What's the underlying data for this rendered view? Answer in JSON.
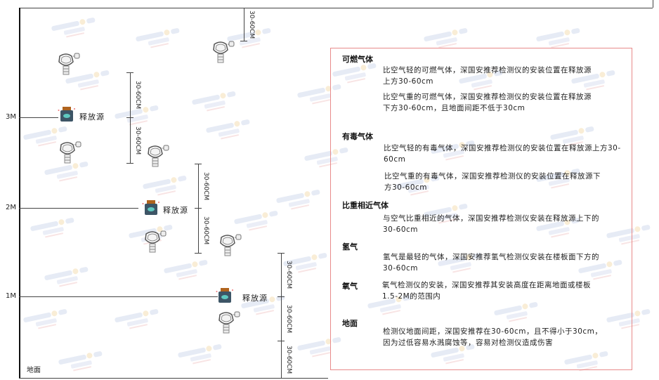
{
  "levels": {
    "l3": "3M",
    "l2": "2M",
    "l1": "1M",
    "ground": "地面"
  },
  "dimension_label": "30-60CM",
  "source_label": "释放源",
  "watermark": "SINGOAN 深国安",
  "notes": {
    "combustible": {
      "title": "可燃气体",
      "p1": "比空气轻的可燃气体，深国安推荐检测仪的安装位置在释放源上方30-60cm",
      "p2": "比空气重的可燃气体，深国安推荐检测仪的安装位置在释放源下方30-60cm，且地面间距不低于30cm"
    },
    "toxic": {
      "title": "有毒气体",
      "p1": "比空气轻的有毒气体，深国安推荐检测仪的安装位置在释放源上方30-60cm",
      "p2": "比空气重的有毒气体，深国安推荐检测仪的安装位置在释放源下方30-60cm"
    },
    "similar": {
      "title": "比重相近气体",
      "p1": "与空气比重相近的气体，深国安推荐检测仪安装在释放源上下的30-60cm"
    },
    "hydrogen": {
      "title": "氢气",
      "p1": "氢气是最轻的气体，深国安推荐氢气检测仪安装在楼板面下方的30-60cm"
    },
    "oxygen": {
      "title": "氧气",
      "p1": "氧气检测仪的安装，深国安推荐其安装高度在距离地面或楼板1.5-2M的范围内"
    },
    "ground": {
      "title": "地面",
      "p1": "检测仪地面间距，深国安推荐在30-60cm，且不得小于30cm，因为过低容易水溅腐蚀等，容易对检测仪造成伤害"
    }
  },
  "colors": {
    "box_border": "#e88a8a",
    "source_body": "#3d5566",
    "source_cap": "#b0641e"
  }
}
